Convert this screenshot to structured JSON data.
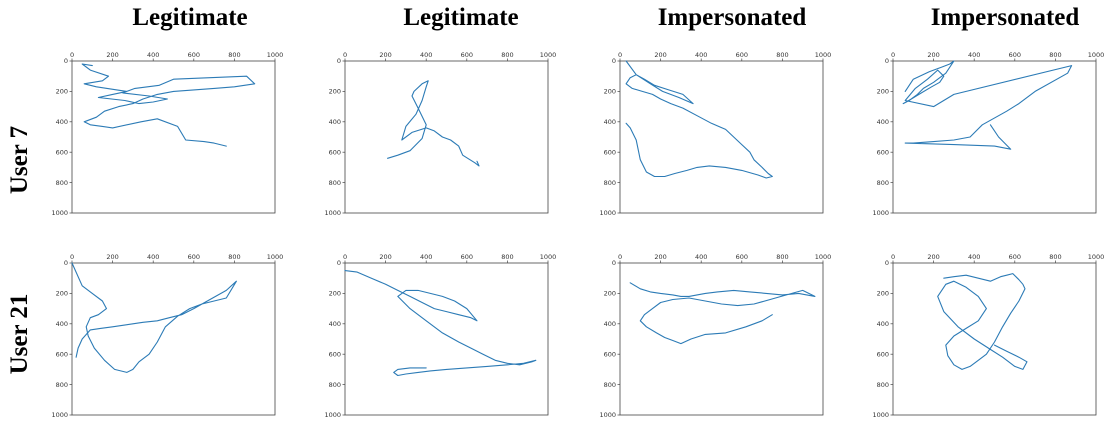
{
  "column_titles": [
    "Legitimate",
    "Legitimate",
    "Impersonated",
    "Impersonated"
  ],
  "row_labels": [
    "User 7",
    "User 21"
  ],
  "trajectory_color": "#2c7bb6",
  "chart_data": [
    {
      "type": "line",
      "row": "User 7",
      "column": "Legitimate",
      "xlim": [
        0,
        1000
      ],
      "ylim": [
        1000,
        0
      ],
      "xticks": [
        0,
        200,
        400,
        600,
        800,
        1000
      ],
      "yticks": [
        0,
        200,
        400,
        600,
        800,
        1000
      ],
      "grid": false,
      "x": [
        100,
        50,
        90,
        180,
        150,
        60,
        120,
        270,
        200,
        130,
        260,
        330,
        400,
        470,
        380,
        250,
        310,
        430,
        500,
        860,
        900,
        800,
        700,
        500,
        420,
        350,
        300,
        230,
        160,
        120,
        60,
        90,
        150,
        200,
        340,
        420,
        520,
        560,
        650,
        700,
        760
      ],
      "y": [
        30,
        20,
        60,
        100,
        130,
        150,
        170,
        200,
        220,
        240,
        260,
        280,
        270,
        250,
        230,
        210,
        180,
        160,
        120,
        100,
        150,
        170,
        180,
        200,
        220,
        250,
        280,
        300,
        330,
        370,
        400,
        420,
        430,
        440,
        400,
        380,
        430,
        520,
        530,
        540,
        560
      ]
    },
    {
      "type": "line",
      "row": "User 7",
      "column": "Legitimate",
      "xlim": [
        0,
        1000
      ],
      "ylim": [
        1000,
        0
      ],
      "xticks": [
        0,
        200,
        400,
        600,
        800,
        1000
      ],
      "yticks": [
        0,
        200,
        400,
        600,
        800,
        1000
      ],
      "grid": false,
      "x": [
        210,
        260,
        320,
        380,
        400,
        360,
        330,
        340,
        380,
        410,
        400,
        380,
        350,
        300,
        280,
        330,
        400,
        440,
        480,
        520,
        560,
        580,
        640,
        660,
        650
      ],
      "y": [
        640,
        620,
        590,
        510,
        420,
        310,
        230,
        200,
        150,
        130,
        170,
        260,
        350,
        430,
        520,
        470,
        440,
        460,
        500,
        520,
        560,
        620,
        670,
        690,
        660
      ]
    },
    {
      "type": "line",
      "row": "User 7",
      "column": "Impersonated",
      "xlim": [
        0,
        1000
      ],
      "ylim": [
        1000,
        0
      ],
      "xticks": [
        0,
        200,
        400,
        600,
        800,
        1000
      ],
      "yticks": [
        0,
        200,
        400,
        600,
        800,
        1000
      ],
      "grid": false,
      "x": [
        30,
        80,
        150,
        210,
        290,
        360,
        310,
        240,
        170,
        120,
        80,
        50,
        30,
        60,
        110,
        160,
        200,
        250,
        310,
        380,
        450,
        520,
        560,
        600,
        640,
        660,
        700,
        730,
        750,
        720,
        680,
        600,
        520,
        440,
        380,
        330,
        270,
        220,
        170,
        130,
        100,
        80,
        50,
        30
      ],
      "y": [
        0,
        90,
        150,
        200,
        240,
        280,
        220,
        190,
        160,
        120,
        90,
        110,
        150,
        180,
        200,
        220,
        250,
        280,
        310,
        360,
        410,
        450,
        500,
        550,
        600,
        650,
        700,
        740,
        760,
        770,
        750,
        720,
        700,
        690,
        700,
        720,
        740,
        760,
        760,
        730,
        650,
        520,
        440,
        410
      ]
    },
    {
      "type": "line",
      "row": "User 7",
      "column": "Impersonated",
      "xlim": [
        0,
        1000
      ],
      "ylim": [
        1000,
        0
      ],
      "xticks": [
        0,
        200,
        400,
        600,
        800,
        1000
      ],
      "yticks": [
        0,
        200,
        400,
        600,
        800,
        1000
      ],
      "grid": false,
      "x": [
        60,
        100,
        180,
        240,
        280,
        300,
        260,
        200,
        150,
        120,
        80,
        50,
        90,
        140,
        190,
        230,
        250,
        220,
        170,
        110,
        60,
        200,
        300,
        880,
        860,
        700,
        620,
        560,
        440,
        380,
        300,
        200,
        100,
        60,
        300,
        500,
        580,
        520,
        480
      ],
      "y": [
        200,
        120,
        70,
        40,
        20,
        0,
        80,
        140,
        180,
        220,
        260,
        280,
        250,
        210,
        170,
        140,
        100,
        60,
        120,
        180,
        260,
        300,
        220,
        30,
        80,
        200,
        280,
        330,
        420,
        500,
        520,
        530,
        540,
        540,
        550,
        560,
        580,
        500,
        420
      ]
    },
    {
      "type": "line",
      "row": "User 21",
      "column": "Legitimate",
      "xlim": [
        0,
        1000
      ],
      "ylim": [
        1000,
        0
      ],
      "xticks": [
        0,
        200,
        400,
        600,
        800,
        1000
      ],
      "yticks": [
        0,
        200,
        400,
        600,
        800,
        1000
      ],
      "grid": false,
      "x": [
        0,
        50,
        100,
        150,
        170,
        130,
        90,
        70,
        80,
        110,
        160,
        210,
        270,
        300,
        330,
        380,
        420,
        460,
        520,
        580,
        640,
        700,
        760,
        810,
        760,
        680,
        600,
        540,
        480,
        420,
        350,
        300,
        250,
        200,
        140,
        90,
        50,
        30,
        20
      ],
      "y": [
        0,
        150,
        200,
        250,
        300,
        340,
        360,
        420,
        480,
        560,
        640,
        700,
        720,
        700,
        650,
        600,
        520,
        420,
        350,
        300,
        270,
        250,
        230,
        120,
        180,
        240,
        300,
        340,
        360,
        380,
        390,
        400,
        410,
        420,
        430,
        440,
        500,
        560,
        620
      ]
    },
    {
      "type": "line",
      "row": "User 21",
      "column": "Legitimate",
      "xlim": [
        0,
        1000
      ],
      "ylim": [
        1000,
        0
      ],
      "xticks": [
        0,
        200,
        400,
        600,
        800,
        1000
      ],
      "yticks": [
        0,
        200,
        400,
        600,
        800,
        1000
      ],
      "grid": false,
      "x": [
        0,
        60,
        130,
        200,
        260,
        320,
        380,
        440,
        500,
        560,
        620,
        650,
        600,
        540,
        480,
        420,
        360,
        300,
        260,
        320,
        400,
        480,
        560,
        620,
        680,
        740,
        800,
        860,
        920,
        940,
        880,
        800,
        700,
        600,
        500,
        420,
        360,
        300,
        260,
        240,
        260,
        320,
        400
      ],
      "y": [
        50,
        60,
        100,
        140,
        180,
        220,
        260,
        300,
        320,
        340,
        360,
        380,
        300,
        250,
        220,
        200,
        180,
        180,
        220,
        300,
        380,
        460,
        520,
        560,
        600,
        640,
        660,
        670,
        650,
        640,
        660,
        670,
        680,
        690,
        700,
        710,
        720,
        730,
        740,
        720,
        700,
        690,
        690
      ]
    },
    {
      "type": "line",
      "row": "User 21",
      "column": "Impersonated",
      "xlim": [
        0,
        1000
      ],
      "ylim": [
        1000,
        0
      ],
      "xticks": [
        0,
        200,
        400,
        600,
        800,
        1000
      ],
      "yticks": [
        0,
        200,
        400,
        600,
        800,
        1000
      ],
      "grid": false,
      "x": [
        50,
        100,
        150,
        200,
        260,
        300,
        340,
        380,
        420,
        480,
        560,
        640,
        720,
        800,
        880,
        960,
        900,
        820,
        740,
        660,
        580,
        500,
        420,
        340,
        260,
        200,
        160,
        120,
        100,
        130,
        180,
        220,
        260,
        300,
        350,
        420,
        520,
        620,
        700,
        750
      ],
      "y": [
        130,
        170,
        190,
        200,
        210,
        220,
        220,
        210,
        200,
        190,
        180,
        190,
        200,
        210,
        200,
        220,
        180,
        210,
        240,
        270,
        280,
        270,
        250,
        230,
        240,
        260,
        300,
        340,
        380,
        420,
        460,
        490,
        510,
        530,
        500,
        470,
        460,
        420,
        380,
        340
      ]
    },
    {
      "type": "line",
      "row": "User 21",
      "column": "Impersonated",
      "xlim": [
        0,
        1000
      ],
      "ylim": [
        1000,
        0
      ],
      "xticks": [
        0,
        200,
        400,
        600,
        800,
        1000
      ],
      "yticks": [
        0,
        200,
        400,
        600,
        800,
        1000
      ],
      "grid": false,
      "x": [
        250,
        300,
        360,
        420,
        480,
        530,
        560,
        590,
        620,
        640,
        650,
        620,
        580,
        540,
        500,
        460,
        420,
        380,
        340,
        300,
        270,
        260,
        300,
        360,
        420,
        460,
        420,
        360,
        300,
        260,
        220,
        250,
        320,
        400,
        470,
        540,
        600,
        640,
        660,
        620,
        560,
        500
      ],
      "y": [
        100,
        90,
        80,
        100,
        120,
        90,
        80,
        70,
        110,
        140,
        170,
        250,
        330,
        420,
        520,
        600,
        640,
        680,
        700,
        670,
        610,
        540,
        480,
        430,
        380,
        300,
        220,
        160,
        120,
        140,
        220,
        320,
        420,
        500,
        560,
        620,
        680,
        700,
        650,
        620,
        580,
        540
      ]
    }
  ]
}
